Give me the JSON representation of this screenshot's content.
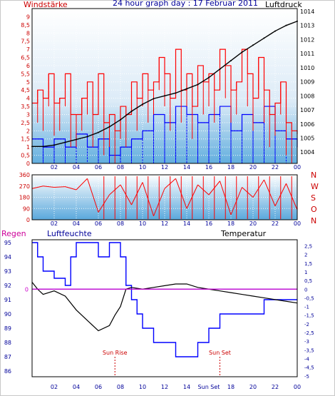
{
  "header": {
    "title": "24 hour graph day : 17 Februar 2011",
    "left_label": "Windstärke",
    "right_label": "Luftdruck"
  },
  "colors": {
    "wind": "#ff0000",
    "gust": "#0000ff",
    "pressure": "#000000",
    "direction": "#ff0000",
    "temperature": "#000000",
    "humidity": "#0000ff",
    "rain": "#cc00cc",
    "axis_text_blue": "#000099",
    "axis_text_red": "#cc0000"
  },
  "chart_data": [
    {
      "type": "line",
      "title": "24 hour graph day : 17 Februar 2011",
      "ylabel_left": "Windstärke",
      "ylabel_right": "Luftdruck",
      "x_ticks": [
        "02",
        "04",
        "06",
        "08",
        "10",
        "12",
        "14",
        "16",
        "18",
        "20",
        "22",
        "00"
      ],
      "y_ticks_left": [
        "0",
        "0,5",
        "1",
        "1,5",
        "2",
        "2,5",
        "3",
        "3,5",
        "4",
        "4,5",
        "5",
        "5,5",
        "6",
        "6,5",
        "7",
        "7,5",
        "8",
        "8,5",
        "9"
      ],
      "y_ticks_right": [
        "1004",
        "1005",
        "1006",
        "1007",
        "1008",
        "1009",
        "1010",
        "1011",
        "1012",
        "1013",
        "1014"
      ],
      "ylim_left": [
        0,
        9.5
      ],
      "ylim_right": [
        1003.2,
        1014.2
      ],
      "series": [
        {
          "name": "Windstärke",
          "x": [
            0,
            0.5,
            1,
            1.5,
            2,
            2.5,
            3,
            3.5,
            4,
            4.5,
            5,
            5.5,
            6,
            6.5,
            7,
            7.5,
            8,
            8.5,
            9,
            9.5,
            10,
            10.5,
            11,
            11.5,
            12,
            12.5,
            13,
            13.5,
            14,
            14.5,
            15,
            15.5,
            16,
            16.5,
            17,
            17.5,
            18,
            18.5,
            19,
            19.5,
            20,
            20.5,
            21,
            21.5,
            22,
            22.5,
            23,
            23.5,
            24
          ],
          "y": [
            3.7,
            4.5,
            4,
            5.5,
            3.7,
            4,
            5.5,
            3,
            3,
            4,
            5,
            3,
            5.5,
            2.5,
            3,
            2,
            3.5,
            3,
            5,
            4,
            5.5,
            4.5,
            5,
            6.5,
            5.5,
            4,
            7,
            4.5,
            5.5,
            3.5,
            6,
            5,
            5.5,
            4.5,
            7,
            6,
            4.5,
            5,
            7,
            5.5,
            4,
            6.5,
            4.5,
            3,
            3.7,
            5,
            2.5,
            2,
            1.8
          ]
        },
        {
          "name": "Böen",
          "x": [
            0,
            1,
            2,
            3,
            4,
            5,
            6,
            7,
            8,
            9,
            10,
            11,
            12,
            13,
            14,
            15,
            16,
            17,
            18,
            19,
            20,
            21,
            22,
            23,
            24
          ],
          "y": [
            1.5,
            1,
            1.5,
            1,
            1.8,
            1,
            1.5,
            0.5,
            1,
            1.5,
            2,
            3,
            2.5,
            3.5,
            3,
            2.5,
            3,
            3.5,
            2,
            3,
            2.5,
            3.5,
            2,
            1.5,
            1
          ]
        },
        {
          "name": "Luftdruck",
          "x": [
            0,
            1,
            2,
            3,
            4,
            5,
            6,
            7,
            8,
            9,
            10,
            11,
            12,
            13,
            14,
            15,
            16,
            17,
            18,
            19,
            20,
            21,
            22,
            23,
            24
          ],
          "y": [
            1004.4,
            1004.4,
            1004.5,
            1004.7,
            1004.9,
            1005.1,
            1005.4,
            1005.8,
            1006.3,
            1006.9,
            1007.4,
            1007.8,
            1008.0,
            1008.2,
            1008.5,
            1008.8,
            1009.3,
            1009.9,
            1010.5,
            1011.1,
            1011.6,
            1012.1,
            1012.6,
            1013.0,
            1013.3
          ]
        }
      ]
    },
    {
      "type": "line",
      "ylabel_right": "N W S O N",
      "x_ticks": [
        "02",
        "04",
        "06",
        "08",
        "10",
        "12",
        "14",
        "16",
        "18",
        "20",
        "22",
        "00"
      ],
      "y_ticks_left": [
        "0",
        "90",
        "180",
        "270",
        "360"
      ],
      "ylim": [
        0,
        360
      ],
      "compass": [
        "N",
        "W",
        "S",
        "O",
        "N"
      ],
      "series": [
        {
          "name": "Windrichtung",
          "x": [
            0,
            1,
            2,
            3,
            4,
            5,
            6,
            7,
            8,
            9,
            10,
            11,
            12,
            13,
            14,
            15,
            16,
            17,
            18,
            19,
            20,
            21,
            22,
            23,
            24
          ],
          "y": [
            250,
            270,
            260,
            265,
            240,
            330,
            60,
            200,
            280,
            120,
            300,
            30,
            250,
            330,
            90,
            280,
            200,
            310,
            40,
            260,
            180,
            320,
            110,
            290,
            80
          ]
        }
      ]
    },
    {
      "type": "line",
      "ylabel_left": "Regen",
      "ylabel_mid": "Luftfeuchte",
      "ylabel_right": "Temperatur",
      "x_ticks": [
        "02",
        "04",
        "06",
        "08",
        "10",
        "12",
        "14",
        "Sun Set",
        "18",
        "20",
        "22",
        "00"
      ],
      "y_ticks_left": [
        "86",
        "87",
        "88",
        "89",
        "90",
        "91",
        "92",
        "93",
        "94",
        "95"
      ],
      "y_ticks_right": [
        "-5",
        "-4,5",
        "-4",
        "-3,5",
        "-3",
        "-2,5",
        "-2",
        "-1,5",
        "-1",
        "-0,5",
        "0",
        "0,5",
        "1",
        "1,5",
        "2",
        "2,5"
      ],
      "rain_marker": "0",
      "ylim_left": [
        85.6,
        95.2
      ],
      "ylim_right": [
        -5.05,
        2.85
      ],
      "annotations": [
        "Sun Rise",
        "Sun Set"
      ],
      "series": [
        {
          "name": "Luftfeuchte",
          "x": [
            0,
            0.5,
            1,
            2,
            3,
            3.5,
            4,
            5,
            6,
            7,
            8,
            8.5,
            9,
            9.5,
            10,
            11,
            12,
            13,
            14,
            15,
            16,
            17,
            18,
            19,
            20,
            21,
            22,
            23,
            24
          ],
          "y": [
            95,
            94,
            93,
            92.5,
            92,
            94,
            95,
            95,
            94,
            95,
            94,
            92,
            91,
            90,
            89,
            88,
            88,
            87,
            87,
            88,
            89,
            90,
            90,
            90,
            90,
            91,
            91,
            91,
            91
          ]
        },
        {
          "name": "Temperatur",
          "x": [
            0,
            0.5,
            1,
            2,
            3,
            4,
            5,
            6,
            7,
            7.5,
            8,
            8.5,
            9,
            10,
            11,
            12,
            13,
            14,
            15,
            16,
            17,
            18,
            19,
            20,
            21,
            22,
            23,
            24
          ],
          "y": [
            0.4,
            0.0,
            -0.3,
            -0.1,
            -0.4,
            -1.2,
            -1.8,
            -2.4,
            -2.1,
            -1.5,
            -1.0,
            0.0,
            0.1,
            0.0,
            0.1,
            0.2,
            0.3,
            0.3,
            0.1,
            0.0,
            -0.1,
            -0.2,
            -0.3,
            -0.4,
            -0.5,
            -0.6,
            -0.7,
            -0.8
          ]
        },
        {
          "name": "Regen",
          "x": [
            0,
            24
          ],
          "y": [
            0,
            0
          ]
        }
      ]
    }
  ]
}
